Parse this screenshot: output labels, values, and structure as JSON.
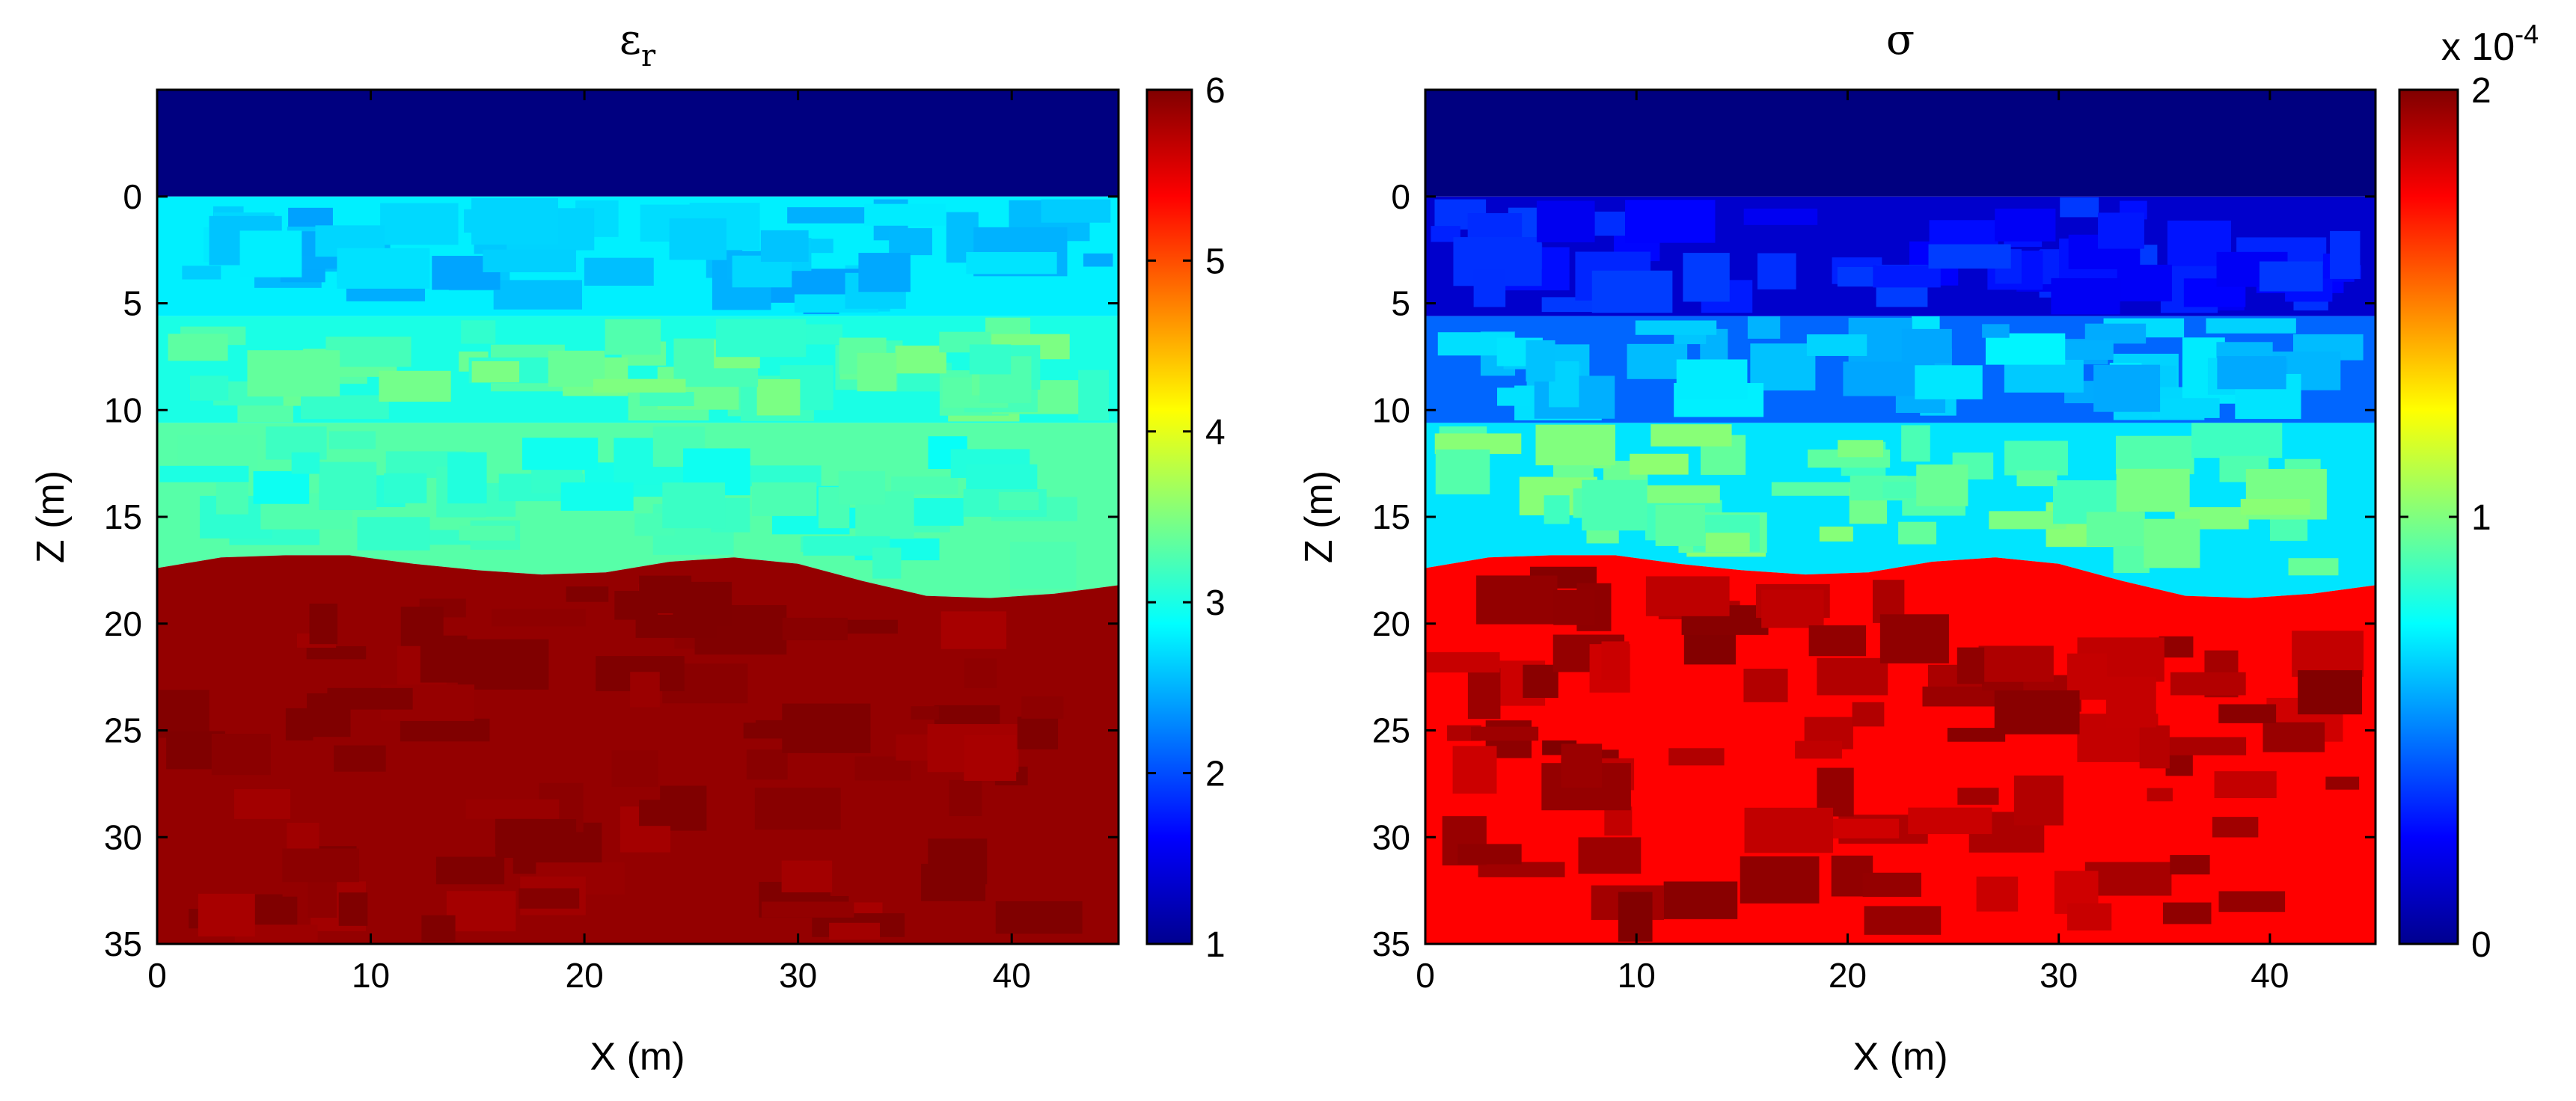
{
  "chart_data": [
    {
      "type": "heatmap",
      "title": "ε",
      "title_subscript": "r",
      "xlabel": "X (m)",
      "ylabel": "Z (m)",
      "xlim": [
        0,
        45
      ],
      "ylim": [
        -5,
        35
      ],
      "y_reversed": true,
      "x_ticks": [
        "0",
        "10",
        "20",
        "30",
        "40"
      ],
      "y_ticks": [
        "0",
        "5",
        "10",
        "15",
        "20",
        "25",
        "30",
        "35"
      ],
      "colorbar": {
        "min": 1,
        "max": 6,
        "ticks": [
          "1",
          "2",
          "3",
          "4",
          "5",
          "6"
        ],
        "exponent_label": ""
      },
      "layers": [
        {
          "name": "air",
          "value": 1.0,
          "z_top": -5,
          "z_bottom": 0
        },
        {
          "name": "layer1",
          "value": 2.8,
          "z_top": 0,
          "z_bottom": 5.6,
          "patch_value": 2.6
        },
        {
          "name": "layer2",
          "value": 3.0,
          "z_top": 5.6,
          "z_bottom": 10.6,
          "patch_value": 3.3
        },
        {
          "name": "layer3",
          "value": 3.3,
          "z_top": 10.6,
          "z_bottom": "interface",
          "patch_value": 3.1
        },
        {
          "name": "bedrock",
          "value": 5.9,
          "z_top": "interface",
          "z_bottom": 35,
          "patch_value": 6.0
        }
      ],
      "interface_depth": [
        [
          0,
          17.4
        ],
        [
          3,
          16.9
        ],
        [
          6,
          16.8
        ],
        [
          9,
          16.8
        ],
        [
          12,
          17.2
        ],
        [
          15,
          17.5
        ],
        [
          18,
          17.7
        ],
        [
          21,
          17.6
        ],
        [
          24,
          17.1
        ],
        [
          27,
          16.9
        ],
        [
          30,
          17.2
        ],
        [
          33,
          18.0
        ],
        [
          36,
          18.7
        ],
        [
          39,
          18.8
        ],
        [
          42,
          18.6
        ],
        [
          45,
          18.2
        ]
      ]
    },
    {
      "type": "heatmap",
      "title": "σ",
      "title_subscript": "",
      "xlabel": "X (m)",
      "ylabel": "Z (m)",
      "xlim": [
        0,
        45
      ],
      "ylim": [
        -5,
        35
      ],
      "y_reversed": true,
      "x_ticks": [
        "0",
        "10",
        "20",
        "30",
        "40"
      ],
      "y_ticks": [
        "0",
        "5",
        "10",
        "15",
        "20",
        "25",
        "30",
        "35"
      ],
      "colorbar": {
        "min": 0,
        "max": 2,
        "ticks": [
          "0",
          "1",
          "2"
        ],
        "exponent_label": "x 10",
        "exponent_power": "-4"
      },
      "layers": [
        {
          "name": "air",
          "value": 0.0,
          "z_top": -5,
          "z_bottom": 0
        },
        {
          "name": "layer1",
          "value": 0.15,
          "z_top": 0,
          "z_bottom": 5.6,
          "patch_value": 0.3
        },
        {
          "name": "layer2",
          "value": 0.45,
          "z_top": 5.6,
          "z_bottom": 10.6,
          "patch_value": 0.65
        },
        {
          "name": "layer3",
          "value": 0.7,
          "z_top": 10.6,
          "z_bottom": "interface",
          "patch_value": 0.95
        },
        {
          "name": "bedrock",
          "value": 1.75,
          "z_top": "interface",
          "z_bottom": 35,
          "patch_value": 1.92
        }
      ],
      "interface_depth": [
        [
          0,
          17.4
        ],
        [
          3,
          16.9
        ],
        [
          6,
          16.8
        ],
        [
          9,
          16.8
        ],
        [
          12,
          17.2
        ],
        [
          15,
          17.5
        ],
        [
          18,
          17.7
        ],
        [
          21,
          17.6
        ],
        [
          24,
          17.1
        ],
        [
          27,
          16.9
        ],
        [
          30,
          17.2
        ],
        [
          33,
          18.0
        ],
        [
          36,
          18.7
        ],
        [
          39,
          18.8
        ],
        [
          42,
          18.6
        ],
        [
          45,
          18.2
        ]
      ]
    }
  ]
}
